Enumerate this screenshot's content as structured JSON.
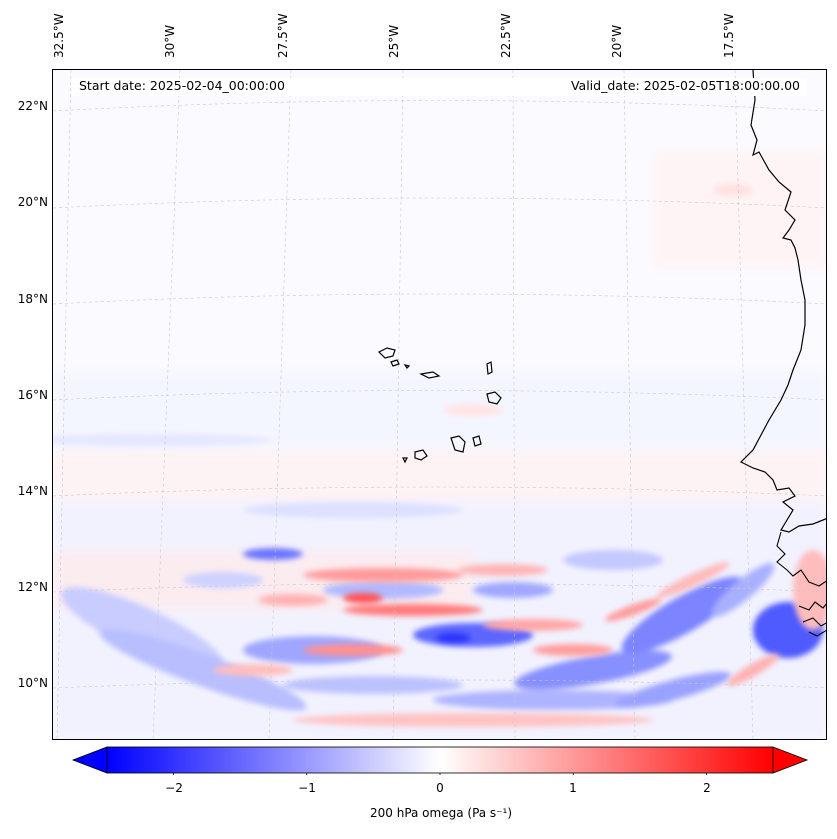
{
  "map": {
    "start_date": "Start date: 2025-02-04_00:00:00",
    "valid_date": "Valid_date: 2025-02-05T18:00:00.00",
    "lon_labels": [
      "32.5°W",
      "30°W",
      "27.5°W",
      "25°W",
      "22.5°W",
      "20°W",
      "17.5°W"
    ],
    "lat_labels": [
      "22°N",
      "20°N",
      "18°N",
      "16°N",
      "14°N",
      "12°N",
      "10°N"
    ],
    "colors": {
      "negative": "#0000ff",
      "zero": "#ffffff",
      "positive": "#ff0000",
      "coast": "#000000",
      "grid": "#c8c8c8"
    }
  },
  "colorbar": {
    "label": "200 hPa omega (Pa s⁻¹)",
    "ticks": [
      "−2",
      "−1",
      "0",
      "1",
      "2"
    ],
    "tick_values": [
      -2,
      -1,
      0,
      1,
      2
    ],
    "range": [
      -2.5,
      2.5
    ],
    "extend": "both"
  }
}
